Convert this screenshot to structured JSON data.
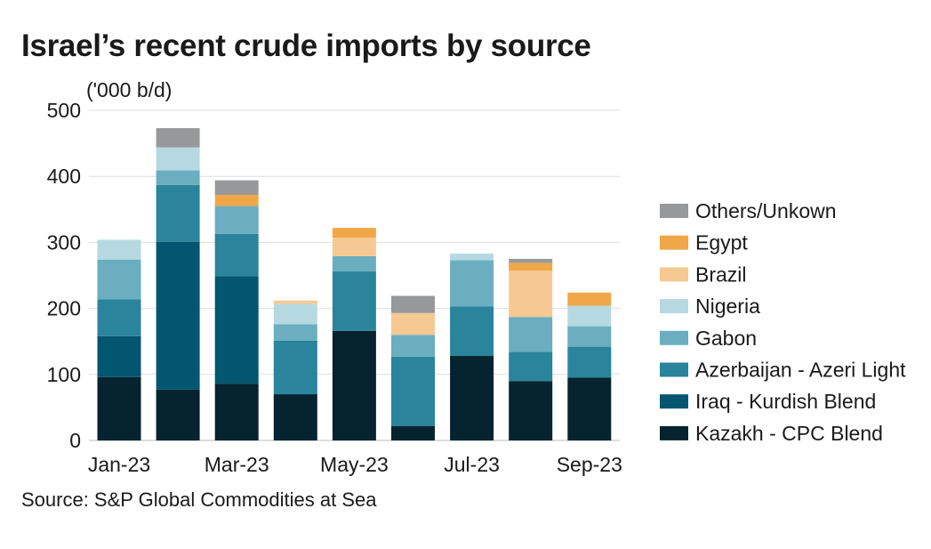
{
  "title": "Israel’s recent crude imports by source",
  "source": "Source: S&P Global Commodities at Sea",
  "chart_data": {
    "type": "stacked-bar",
    "title": "Israel’s recent crude imports by source",
    "ylabel": "('000 b/d)",
    "ylim": [
      0,
      500
    ],
    "yticks": [
      0,
      100,
      200,
      300,
      400,
      500
    ],
    "grid": true,
    "legend_position": "right",
    "categories": [
      "Jan-23",
      "Feb-23",
      "Mar-23",
      "Apr-23",
      "May-23",
      "Jun-23",
      "Jul-23",
      "Aug-23",
      "Sep-23"
    ],
    "xtick_labels": [
      "Jan-23",
      "",
      "Mar-23",
      "",
      "May-23",
      "",
      "Jul-23",
      "",
      "Sep-23"
    ],
    "series": [
      {
        "name": "Kazakh - CPC Blend",
        "color": "#05242f",
        "values": [
          96,
          77,
          86,
          70,
          166,
          22,
          128,
          90,
          95
        ]
      },
      {
        "name": "Iraq - Kurdish Blend",
        "color": "#02566f",
        "values": [
          62,
          224,
          163,
          0,
          0,
          0,
          0,
          0,
          0
        ]
      },
      {
        "name": "Azerbaijan - Azeri Light",
        "color": "#2a849b",
        "values": [
          56,
          86,
          64,
          81,
          90,
          105,
          75,
          44,
          47
        ]
      },
      {
        "name": "Gabon",
        "color": "#6aaebf",
        "values": [
          60,
          22,
          42,
          25,
          23,
          33,
          70,
          53,
          31
        ]
      },
      {
        "name": "Nigeria",
        "color": "#b6d9e1",
        "values": [
          30,
          35,
          0,
          31,
          0,
          0,
          10,
          0,
          31
        ]
      },
      {
        "name": "Brazil",
        "color": "#f6c992",
        "values": [
          0,
          0,
          0,
          5,
          28,
          33,
          0,
          70,
          0
        ]
      },
      {
        "name": "Egypt",
        "color": "#f0a747",
        "values": [
          0,
          0,
          17,
          0,
          15,
          0,
          0,
          12,
          20
        ]
      },
      {
        "name": "Others/Unkown",
        "color": "#97989a",
        "values": [
          0,
          29,
          22,
          0,
          0,
          26,
          0,
          6,
          0
        ]
      }
    ]
  }
}
